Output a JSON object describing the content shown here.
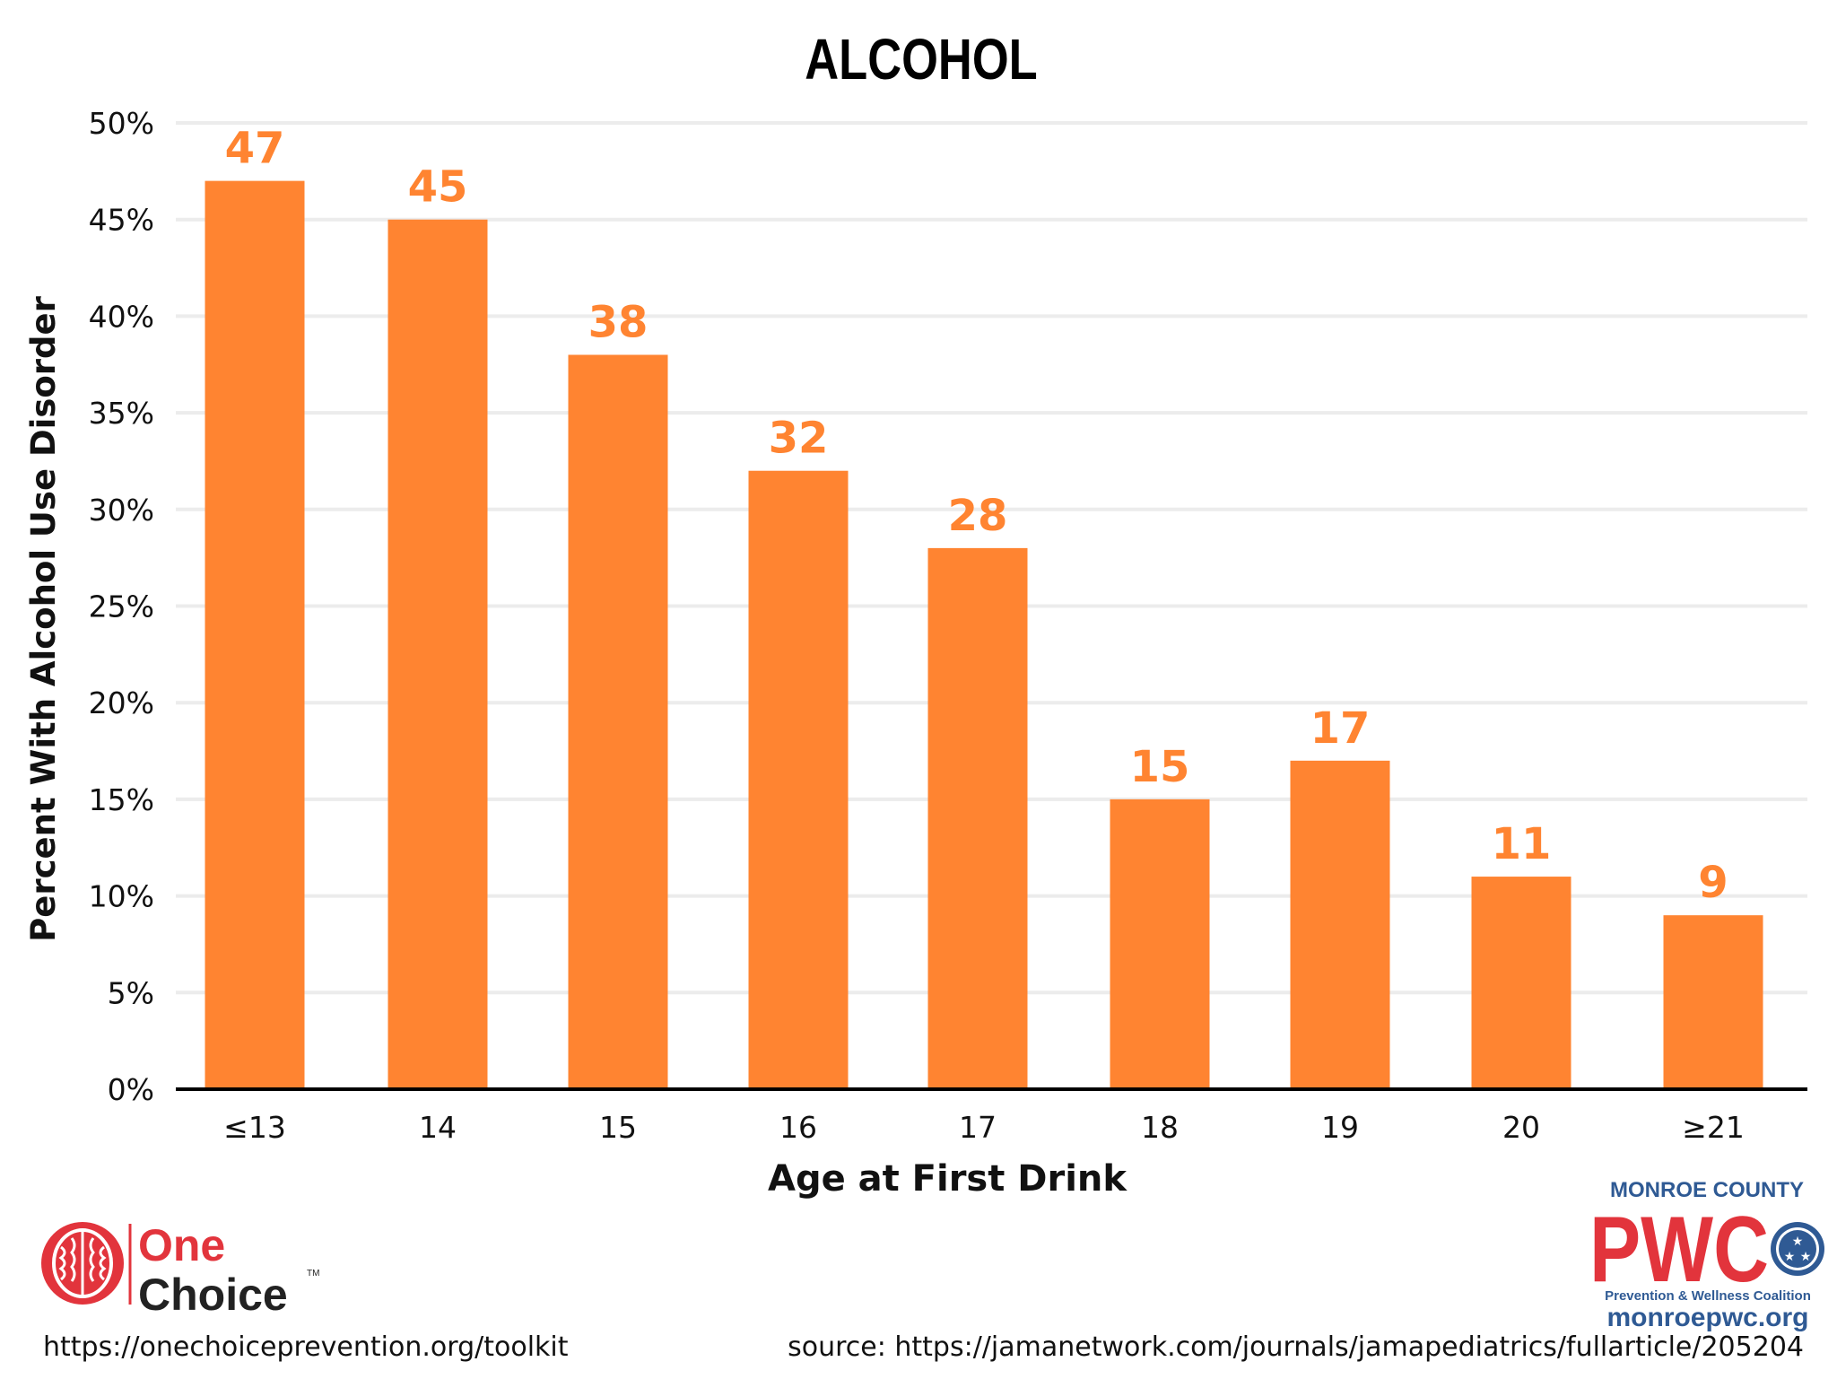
{
  "colors": {
    "bar": "#ff8431",
    "label": "#ff8431",
    "grid": "#ececec",
    "axis": "#000000",
    "brand_red": "#e2343c",
    "brand_blue": "#2f5a94",
    "brand_dark": "#222222"
  },
  "chart_data": {
    "type": "bar",
    "title": "ALCOHOL",
    "xlabel": "Age at First Drink",
    "ylabel": "Percent With Alcohol Use Disorder",
    "categories": [
      "≤13",
      "14",
      "15",
      "16",
      "17",
      "18",
      "19",
      "20",
      "≥21"
    ],
    "values": [
      47,
      45,
      38,
      32,
      28,
      15,
      17,
      11,
      9
    ],
    "ylim": [
      0,
      50
    ],
    "yticks": [
      0,
      5,
      10,
      15,
      20,
      25,
      30,
      35,
      40,
      45,
      50
    ],
    "ytick_labels": [
      "0%",
      "5%",
      "10%",
      "15%",
      "20%",
      "25%",
      "30%",
      "35%",
      "40%",
      "45%",
      "50%"
    ],
    "grid": true,
    "data_labels": true
  },
  "logos": {
    "onechoice": {
      "line1": "One",
      "line2": "Choice",
      "tm": "TM",
      "icon": "brain-icon"
    },
    "pwc": {
      "county": "MONROE COUNTY",
      "letters": "PWC",
      "tagline": "Prevention & Wellness Coalition",
      "website": "monroepwc.org",
      "icon": "tennessee-stars-icon"
    }
  },
  "footer": {
    "left": "https://onechoiceprevention.org/toolkit",
    "right": "source: https://jamanetwork.com/journals/jamapediatrics/fullarticle/205204"
  }
}
